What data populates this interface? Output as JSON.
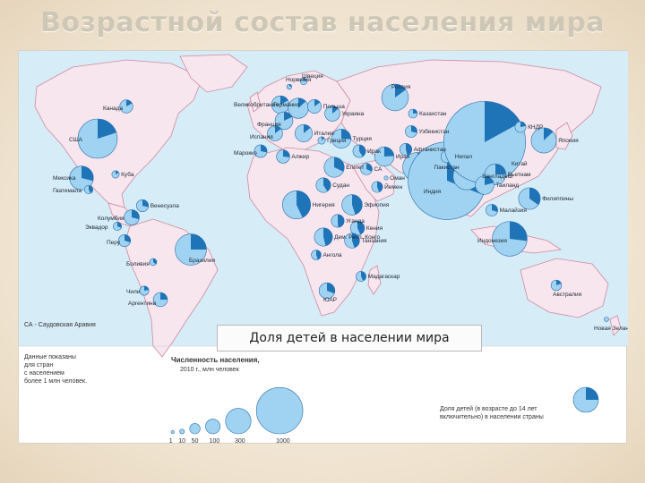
{
  "title": "Возрастной состав населения мира",
  "caption": "Доля детей в населении мира",
  "colors": {
    "ocean": "#d6ecf7",
    "land": "#f7e6ee",
    "border": "#cf8aa0",
    "circle": "#9fd3f1",
    "circle_stroke": "#2d6ea8",
    "slice": "#1f74b8"
  },
  "legend": {
    "note": [
      "Данные показаны",
      "для стран",
      "с населением",
      "более 1 млн человек."
    ],
    "population_title": "Численность населения,",
    "population_subtitle": "2010 г., млн человек",
    "sizes": [
      {
        "label": "1",
        "value": 1
      },
      {
        "label": "10",
        "value": 10
      },
      {
        "label": "50",
        "value": 50
      },
      {
        "label": "100",
        "value": 100
      },
      {
        "label": "300",
        "value": 300
      },
      {
        "label": "1000",
        "value": 1000
      }
    ],
    "children_share": [
      "Доля детей (в возрасте до 14 лет",
      "включительно) в населении страны"
    ]
  },
  "countries": [
    {
      "name": "Канада",
      "pop": 34,
      "share": 0.17
    },
    {
      "name": "США",
      "pop": 310,
      "share": 0.2
    },
    {
      "name": "Мексика",
      "pop": 113,
      "share": 0.29
    },
    {
      "name": "Куба",
      "pop": 11,
      "share": 0.17
    },
    {
      "name": "Гватемала",
      "pop": 14,
      "share": 0.42
    },
    {
      "name": "Венесуэла",
      "pop": 29,
      "share": 0.29
    },
    {
      "name": "Колумбия",
      "pop": 46,
      "share": 0.29
    },
    {
      "name": "Эквадор",
      "pop": 14,
      "share": 0.31
    },
    {
      "name": "Перу",
      "pop": 29,
      "share": 0.3
    },
    {
      "name": "Бразилия",
      "pop": 195,
      "share": 0.25
    },
    {
      "name": "Боливия",
      "pop": 10,
      "share": 0.36
    },
    {
      "name": "Чили",
      "pop": 17,
      "share": 0.22
    },
    {
      "name": "Аргентина",
      "pop": 40,
      "share": 0.25
    },
    {
      "name": "Швеция",
      "pop": 9,
      "share": 0.17
    },
    {
      "name": "Норвегия",
      "pop": 5,
      "share": 0.19
    },
    {
      "name": "Великобритания",
      "pop": 62,
      "share": 0.17
    },
    {
      "name": "Германия",
      "pop": 82,
      "share": 0.13
    },
    {
      "name": "Франция",
      "pop": 63,
      "share": 0.18
    },
    {
      "name": "Испания",
      "pop": 46,
      "share": 0.15
    },
    {
      "name": "Италия",
      "pop": 60,
      "share": 0.14
    },
    {
      "name": "Польша",
      "pop": 38,
      "share": 0.15
    },
    {
      "name": "Украина",
      "pop": 46,
      "share": 0.14
    },
    {
      "name": "Греция",
      "pop": 11,
      "share": 0.14
    },
    {
      "name": "Россия",
      "pop": 142,
      "share": 0.15
    },
    {
      "name": "Казахстан",
      "pop": 16,
      "share": 0.24
    },
    {
      "name": "Узбекистан",
      "pop": 28,
      "share": 0.29
    },
    {
      "name": "Турция",
      "pop": 73,
      "share": 0.26
    },
    {
      "name": "Марокко",
      "pop": 32,
      "share": 0.28
    },
    {
      "name": "Алжир",
      "pop": 35,
      "share": 0.27
    },
    {
      "name": "Египет",
      "pop": 81,
      "share": 0.32
    },
    {
      "name": "Ирак",
      "pop": 32,
      "share": 0.41
    },
    {
      "name": "Иран",
      "pop": 75,
      "share": 0.24
    },
    {
      "name": "Афганистан",
      "pop": 29,
      "share": 0.46
    },
    {
      "name": "Пакистан",
      "pop": 173,
      "share": 0.37
    },
    {
      "name": "Индия",
      "pop": 1210,
      "share": 0.31
    },
    {
      "name": "Непал",
      "pop": 30,
      "share": 0.35
    },
    {
      "name": "Бангладеш",
      "pop": 148,
      "share": 0.31
    },
    {
      "name": "Китай",
      "pop": 1340,
      "share": 0.17
    },
    {
      "name": "КНДР",
      "pop": 24,
      "share": 0.22
    },
    {
      "name": "Япония",
      "pop": 127,
      "share": 0.13
    },
    {
      "name": "Вьетнам",
      "pop": 88,
      "share": 0.25
    },
    {
      "name": "Таиланд",
      "pop": 69,
      "share": 0.21
    },
    {
      "name": "Филиппины",
      "pop": 94,
      "share": 0.35
    },
    {
      "name": "Малайзия",
      "pop": 28,
      "share": 0.3
    },
    {
      "name": "Индонезия",
      "pop": 240,
      "share": 0.27
    },
    {
      "name": "СА",
      "pop": 27,
      "share": 0.32
    },
    {
      "name": "Оман",
      "pop": 3,
      "share": 0.31
    },
    {
      "name": "Йемен",
      "pop": 24,
      "share": 0.44
    },
    {
      "name": "Судан",
      "pop": 43,
      "share": 0.41
    },
    {
      "name": "Эфиопия",
      "pop": 83,
      "share": 0.45
    },
    {
      "name": "Нигерия",
      "pop": 158,
      "share": 0.43
    },
    {
      "name": "Уганда",
      "pop": 33,
      "share": 0.49
    },
    {
      "name": "Кения",
      "pop": 40,
      "share": 0.43
    },
    {
      "name": "Дем. Респ. Конго",
      "pop": 66,
      "share": 0.46
    },
    {
      "name": "Танзания",
      "pop": 45,
      "share": 0.45
    },
    {
      "name": "Ангола",
      "pop": 19,
      "share": 0.45
    },
    {
      "name": "Мадагаскар",
      "pop": 20,
      "share": 0.43
    },
    {
      "name": "ЮАР",
      "pop": 50,
      "share": 0.31
    },
    {
      "name": "Австралия",
      "pop": 22,
      "share": 0.19
    },
    {
      "name": "Новая Зеландия",
      "pop": 4,
      "share": 0.2
    }
  ],
  "footnote": "СА - Саудовская Аравия"
}
